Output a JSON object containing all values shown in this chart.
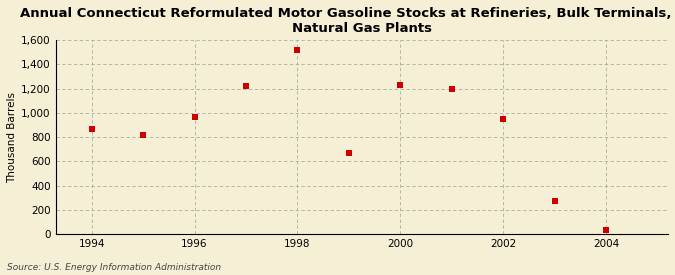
{
  "title": "Annual Connecticut Reformulated Motor Gasoline Stocks at Refineries, Bulk Terminals, and\nNatural Gas Plants",
  "ylabel": "Thousand Barrels",
  "source": "Source: U.S. Energy Information Administration",
  "years": [
    1994,
    1995,
    1996,
    1997,
    1998,
    1999,
    2000,
    2001,
    2002,
    2003,
    2004
  ],
  "values": [
    870,
    820,
    970,
    1220,
    1520,
    670,
    1230,
    1200,
    950,
    275,
    35
  ],
  "marker_color": "#cc0000",
  "marker": "s",
  "marker_size": 4,
  "background_color": "#f5efd5",
  "grid_color": "#aaaaaa",
  "ylim": [
    0,
    1600
  ],
  "yticks": [
    0,
    200,
    400,
    600,
    800,
    1000,
    1200,
    1400,
    1600
  ],
  "xlim": [
    1993.3,
    2005.2
  ],
  "xticks": [
    1994,
    1996,
    1998,
    2000,
    2002,
    2004
  ],
  "title_fontsize": 9.5,
  "label_fontsize": 7.5,
  "tick_fontsize": 7.5,
  "source_fontsize": 6.5
}
